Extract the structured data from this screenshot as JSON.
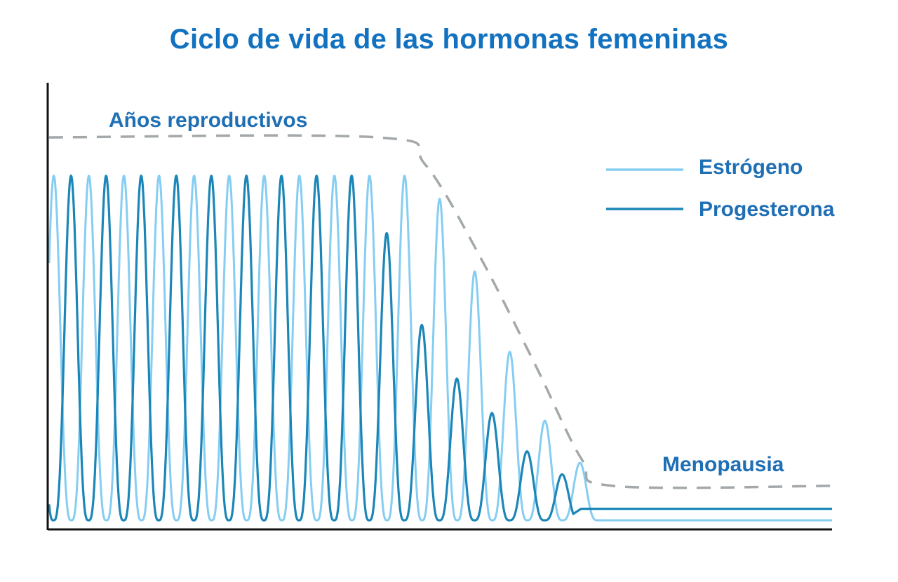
{
  "chart_data": {
    "type": "line",
    "title": "Ciclo de vida de las hormonas femeninas",
    "xlabel": "",
    "ylabel": "",
    "grid": false,
    "legend_placement": "top-right",
    "ylim": [
      0,
      1
    ],
    "x_range": [
      0,
      100
    ],
    "annotations": [
      {
        "text": "Años reproductivos"
      },
      {
        "text": "Menopausia"
      }
    ],
    "envelope": {
      "name": "",
      "style": "dashed",
      "color": "#a3a8ab",
      "x": [
        0,
        42,
        48,
        55,
        62,
        68,
        72,
        100
      ],
      "y": [
        1.0,
        1.0,
        0.93,
        0.69,
        0.41,
        0.16,
        0.09,
        0.09
      ]
    },
    "series": [
      {
        "name": "Estrógeno",
        "color": "#86cdf2",
        "cycle_period": 4.48,
        "first_peak_x": 0.6,
        "baseline": 0.0,
        "peaks": [
          {
            "x": 0.6,
            "y": 0.9
          },
          {
            "x": 5.1,
            "y": 0.9
          },
          {
            "x": 9.6,
            "y": 0.9
          },
          {
            "x": 14.1,
            "y": 0.9
          },
          {
            "x": 18.6,
            "y": 0.9
          },
          {
            "x": 23.1,
            "y": 0.9
          },
          {
            "x": 27.6,
            "y": 0.9
          },
          {
            "x": 32.1,
            "y": 0.9
          },
          {
            "x": 36.6,
            "y": 0.9
          },
          {
            "x": 41.1,
            "y": 0.9
          },
          {
            "x": 45.6,
            "y": 0.9
          },
          {
            "x": 50.0,
            "y": 0.84
          },
          {
            "x": 54.5,
            "y": 0.65
          },
          {
            "x": 59.0,
            "y": 0.44
          },
          {
            "x": 63.5,
            "y": 0.26
          },
          {
            "x": 68.0,
            "y": 0.15
          }
        ],
        "tail_level": 0.0
      },
      {
        "name": "Progesterona",
        "color": "#1b86b7",
        "cycle_period": 4.48,
        "first_peak_x": 2.8,
        "baseline": 0.0,
        "peaks": [
          {
            "x": 2.8,
            "y": 0.9
          },
          {
            "x": 7.3,
            "y": 0.9
          },
          {
            "x": 11.8,
            "y": 0.9
          },
          {
            "x": 16.3,
            "y": 0.9
          },
          {
            "x": 20.8,
            "y": 0.9
          },
          {
            "x": 25.3,
            "y": 0.9
          },
          {
            "x": 29.8,
            "y": 0.9
          },
          {
            "x": 34.3,
            "y": 0.9
          },
          {
            "x": 38.8,
            "y": 0.9
          },
          {
            "x": 43.3,
            "y": 0.75
          },
          {
            "x": 47.8,
            "y": 0.51
          },
          {
            "x": 52.2,
            "y": 0.37
          },
          {
            "x": 56.7,
            "y": 0.28
          },
          {
            "x": 61.2,
            "y": 0.18
          },
          {
            "x": 65.7,
            "y": 0.12
          }
        ],
        "tail_level": 0.03
      }
    ]
  }
}
